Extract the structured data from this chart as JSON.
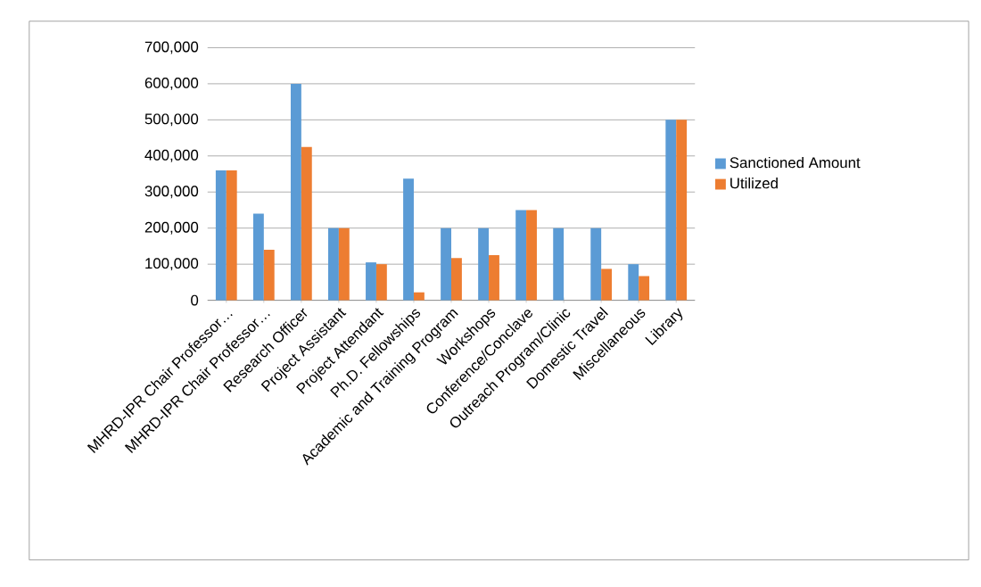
{
  "chart_data": {
    "type": "bar",
    "categories": [
      "MHRD-IPR Chair Professor…",
      "MHRD-IPR Chair Professor…",
      "Research Officer",
      "Project Assistant",
      "Project Attendant",
      "Ph.D. Fellowships",
      "Academic and Training Program",
      "Workshops",
      "Conference/Conclave",
      "Outreach Program/Clinic",
      "Domestic Travel",
      "Miscellaneous",
      "Library"
    ],
    "series": [
      {
        "name": "Sanctioned Amount",
        "color": "#5b9bd5",
        "values": [
          360000,
          240000,
          600000,
          200000,
          105000,
          337000,
          200000,
          200000,
          250000,
          200000,
          200000,
          100000,
          500000
        ]
      },
      {
        "name": "Utilized",
        "color": "#ed7d31",
        "values": [
          360000,
          140000,
          425000,
          200000,
          100000,
          22000,
          117000,
          125000,
          250000,
          null,
          87000,
          67000,
          500000
        ]
      }
    ],
    "ylim": [
      0,
      700000
    ],
    "yticks": [
      {
        "value": 0,
        "label": "0"
      },
      {
        "value": 100000,
        "label": "100,000"
      },
      {
        "value": 200000,
        "label": "200,000"
      },
      {
        "value": 300000,
        "label": "300,000"
      },
      {
        "value": 400000,
        "label": "400,000"
      },
      {
        "value": 500000,
        "label": "500,000"
      },
      {
        "value": 600000,
        "label": "600,000"
      },
      {
        "value": 700000,
        "label": "700,000"
      }
    ],
    "grid": "y",
    "legend": "right"
  }
}
